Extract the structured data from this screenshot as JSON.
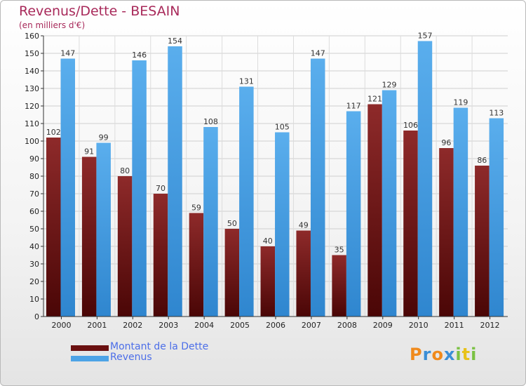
{
  "title": "Revenus/Dette - BESAIN",
  "subtitle": "(en milliers d'€)",
  "logo": {
    "letters": [
      "P",
      "r",
      "o",
      "x",
      "i",
      "t",
      "i"
    ],
    "colors": [
      "#f08a1c",
      "#3a8ed6",
      "#f08a1c",
      "#3a8ed6",
      "#7ac143",
      "#e8c21a",
      "#7ac143"
    ]
  },
  "chart_data": {
    "type": "bar",
    "categories": [
      "2000",
      "2001",
      "2002",
      "2003",
      "2004",
      "2005",
      "2006",
      "2007",
      "2008",
      "2009",
      "2010",
      "2011",
      "2012"
    ],
    "series": [
      {
        "name": "Montant de la Dette",
        "color": "#7a1c1c",
        "values": [
          102,
          91,
          80,
          70,
          59,
          50,
          40,
          49,
          35,
          121,
          106,
          96,
          86
        ]
      },
      {
        "name": "Revenus",
        "color": "#4da3e6",
        "values": [
          147,
          99,
          146,
          154,
          108,
          131,
          105,
          147,
          117,
          129,
          157,
          119,
          113
        ]
      }
    ],
    "ylim": [
      0,
      160
    ],
    "ytick_step": 10,
    "grid": true,
    "legend": "bottom-left",
    "data_labels": true
  }
}
